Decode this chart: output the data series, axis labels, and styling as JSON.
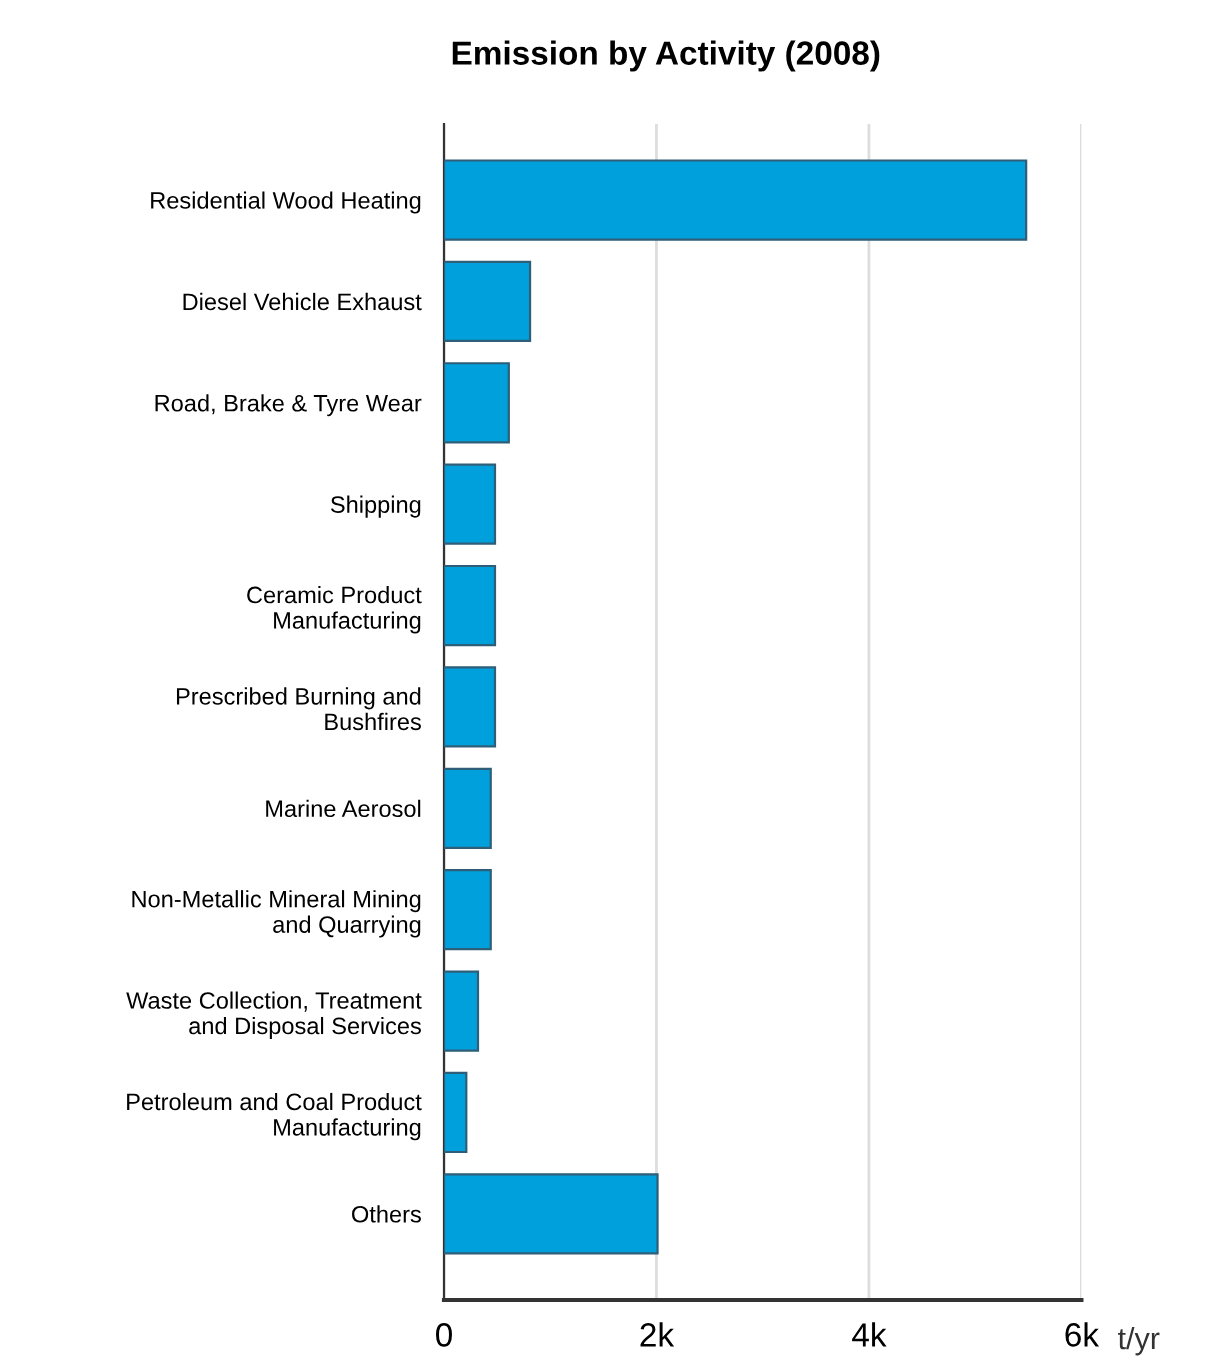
{
  "chart_data": {
    "type": "bar",
    "orientation": "horizontal",
    "title": "Emission by Activity (2008)",
    "xlabel": "t/yr",
    "categories": [
      "Residential Wood Heating",
      "Diesel Vehicle Exhaust",
      "Road, Brake & Tyre Wear",
      "Shipping",
      "Ceramic Product\nManufacturing",
      "Prescribed Burning and\nBushfires",
      "Marine Aerosol",
      "Non-Metallic Mineral Mining\nand Quarrying",
      "Waste Collection, Treatment\nand Disposal Services",
      "Petroleum and Coal Product\nManufacturing",
      "Others"
    ],
    "values": [
      5480,
      810,
      610,
      480,
      480,
      480,
      440,
      440,
      320,
      210,
      2010
    ],
    "color": "#00a0dd",
    "xlim": [
      0,
      6000
    ],
    "xticks": [
      0,
      {
        "value": 2000,
        "label": "2k"
      },
      {
        "value": 4000,
        "label": "4k"
      },
      {
        "value": 6000,
        "label": "6k"
      }
    ],
    "grid": "x"
  }
}
